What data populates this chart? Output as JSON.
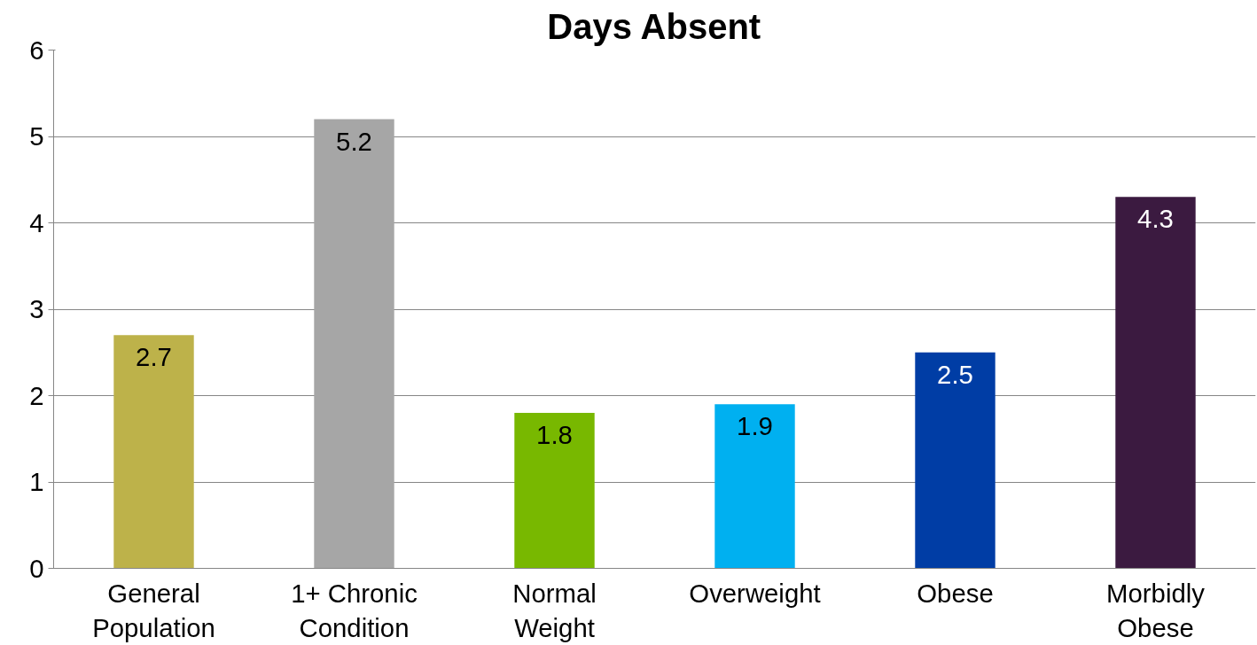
{
  "chart_data": {
    "type": "bar",
    "title": "Days Absent",
    "categories": [
      "General\nPopulation",
      "1+ Chronic\nCondition",
      "Normal\nWeight",
      "Overweight",
      "Obese",
      "Morbidly\nObese"
    ],
    "values": [
      2.7,
      5.2,
      1.8,
      1.9,
      2.5,
      4.3
    ],
    "colors": [
      "#bdb24a",
      "#a6a6a6",
      "#78b800",
      "#00b0f0",
      "#003da5",
      "#3b1a40"
    ],
    "ylim": [
      0,
      6
    ],
    "yticks": [
      0,
      1,
      2,
      3,
      4,
      5,
      6
    ],
    "grid": "y",
    "data_labels": true
  }
}
